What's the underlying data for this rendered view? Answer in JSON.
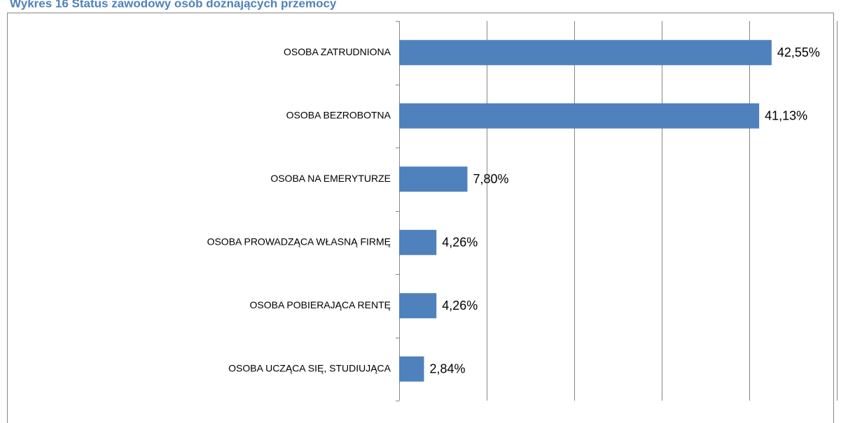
{
  "chart_data": {
    "type": "bar",
    "orientation": "horizontal",
    "title": "Wykres 16 Status zawodowy osób doznających przemocy",
    "categories": [
      "OSOBA ZATRUDNIONA",
      "OSOBA BEZROBOTNA",
      "OSOBA NA EMERYTURZE",
      "OSOBA PROWADZĄCA WŁASNĄ FIRMĘ",
      "OSOBA POBIERAJĄCA RENTĘ",
      "OSOBA UCZĄCA SIĘ, STUDIUJĄCA"
    ],
    "values": [
      42.55,
      41.13,
      7.8,
      4.26,
      4.26,
      2.84
    ],
    "value_labels": [
      "42,55%",
      "41,13%",
      "7,80%",
      "4,26%",
      "4,26%",
      "2,84%"
    ],
    "color": "#4f81bd",
    "xlim": [
      0,
      50
    ],
    "xticks": [
      0,
      10,
      20,
      30,
      40,
      50
    ],
    "grid": true
  }
}
